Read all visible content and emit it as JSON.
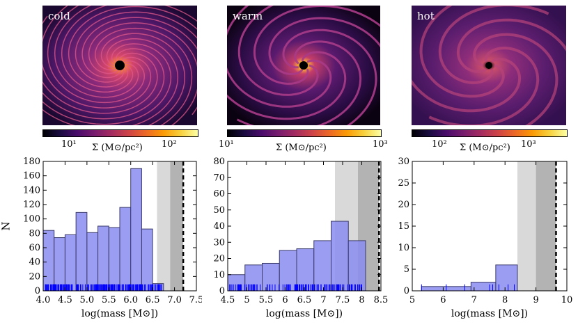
{
  "density_maps": [
    {
      "label": "cold",
      "cbar_label": "Σ (M⊙/pc²)",
      "cbar_ticks": [
        "10¹",
        "10²"
      ],
      "colors": {
        "bg": "#2a0b42",
        "mid": "#8a2a7a",
        "hi": "#f98a2a"
      }
    },
    {
      "label": "warm",
      "cbar_label": "Σ (M⊙/pc²)",
      "cbar_ticks": [
        "10¹",
        "10³"
      ],
      "colors": {
        "bg": "#08020f",
        "mid": "#7a237c",
        "hi": "#f8c64a"
      }
    },
    {
      "label": "hot",
      "cbar_label": "Σ (M⊙/pc²)",
      "cbar_ticks": [
        "10²",
        "10³"
      ],
      "colors": {
        "bg": "#3a0f5c",
        "mid": "#9a2f79",
        "hi": "#f7a23a"
      }
    }
  ],
  "chart_data": [
    {
      "type": "bar",
      "xlabel": "log(mass [M⊙])",
      "ylabel": "N",
      "xlim": [
        4.0,
        7.5
      ],
      "ylim": [
        0,
        180
      ],
      "xticks": [
        4.0,
        4.5,
        5.0,
        5.5,
        6.0,
        6.5,
        7.0,
        7.5
      ],
      "yticks": [
        0,
        20,
        40,
        60,
        80,
        100,
        120,
        140,
        160,
        180
      ],
      "bin_width": 0.25,
      "bin_starts": [
        4.0,
        4.25,
        4.5,
        4.75,
        5.0,
        5.25,
        5.5,
        5.75,
        6.0,
        6.25,
        6.5
      ],
      "values": [
        84,
        74,
        78,
        109,
        81,
        90,
        88,
        116,
        170,
        86,
        10
      ],
      "shaded_light": [
        6.6,
        6.9
      ],
      "shaded_dark": [
        6.9,
        7.2
      ],
      "dashed_line": 7.2,
      "rug": {
        "from": 4.05,
        "to": 6.7,
        "count": 220
      },
      "colors": {
        "bar": "#8a8cf0",
        "rug": "#0000ff"
      }
    },
    {
      "type": "bar",
      "xlabel": "log(mass [M⊙])",
      "ylabel": "",
      "xlim": [
        4.5,
        8.5
      ],
      "ylim": [
        0,
        80
      ],
      "xticks": [
        4.5,
        5.0,
        5.5,
        6.0,
        6.5,
        7.0,
        7.5,
        8.0,
        8.5
      ],
      "yticks": [
        0,
        10,
        20,
        30,
        40,
        50,
        60,
        70,
        80
      ],
      "bin_width": 0.45,
      "bin_starts": [
        4.5,
        4.95,
        5.4,
        5.85,
        6.3,
        6.75,
        7.2,
        7.65
      ],
      "values": [
        10,
        16,
        17,
        25,
        26,
        31,
        43,
        31
      ],
      "bars": [
        {
          "x0": 4.5,
          "x1": 4.95,
          "v": 10
        },
        {
          "x0": 4.95,
          "x1": 5.4,
          "v": 16
        },
        {
          "x0": 5.4,
          "x1": 5.85,
          "v": 17
        },
        {
          "x0": 5.85,
          "x1": 6.3,
          "v": 25
        },
        {
          "x0": 6.3,
          "x1": 6.75,
          "v": 26
        },
        {
          "x0": 6.75,
          "x1": 7.2,
          "v": 31
        },
        {
          "x0": 7.2,
          "x1": 7.65,
          "v": 43
        },
        {
          "x0": 7.65,
          "x1": 8.1,
          "v": 31
        }
      ],
      "shaded_light": [
        7.3,
        7.9
      ],
      "shaded_dark": [
        7.9,
        8.45
      ],
      "dashed_line": 8.45,
      "rug": {
        "from": 4.55,
        "to": 8.0,
        "count": 120
      },
      "colors": {
        "bar": "#8a8cf0",
        "rug": "#0000ff"
      }
    },
    {
      "type": "bar",
      "xlabel": "log(mass [M⊙])",
      "ylabel": "",
      "xlim": [
        5,
        10
      ],
      "ylim": [
        0,
        30
      ],
      "xticks": [
        5,
        6,
        7,
        8,
        9,
        10
      ],
      "yticks": [
        0,
        5,
        10,
        15,
        20,
        25,
        30
      ],
      "bars": [
        {
          "x0": 5.3,
          "x1": 6.9,
          "v": 1
        },
        {
          "x0": 6.9,
          "x1": 7.7,
          "v": 2
        },
        {
          "x0": 7.7,
          "x1": 8.4,
          "v": 6
        }
      ],
      "values": [
        1,
        2,
        6
      ],
      "shaded_light": [
        8.4,
        9.0
      ],
      "shaded_dark": [
        9.0,
        9.65
      ],
      "dashed_line": 9.65,
      "rug_points": [
        5.3,
        6.1,
        6.7,
        7.5,
        7.6,
        7.8,
        8.1,
        8.3
      ],
      "colors": {
        "bar": "#8a8cf0",
        "rug": "#0000ff"
      }
    }
  ]
}
